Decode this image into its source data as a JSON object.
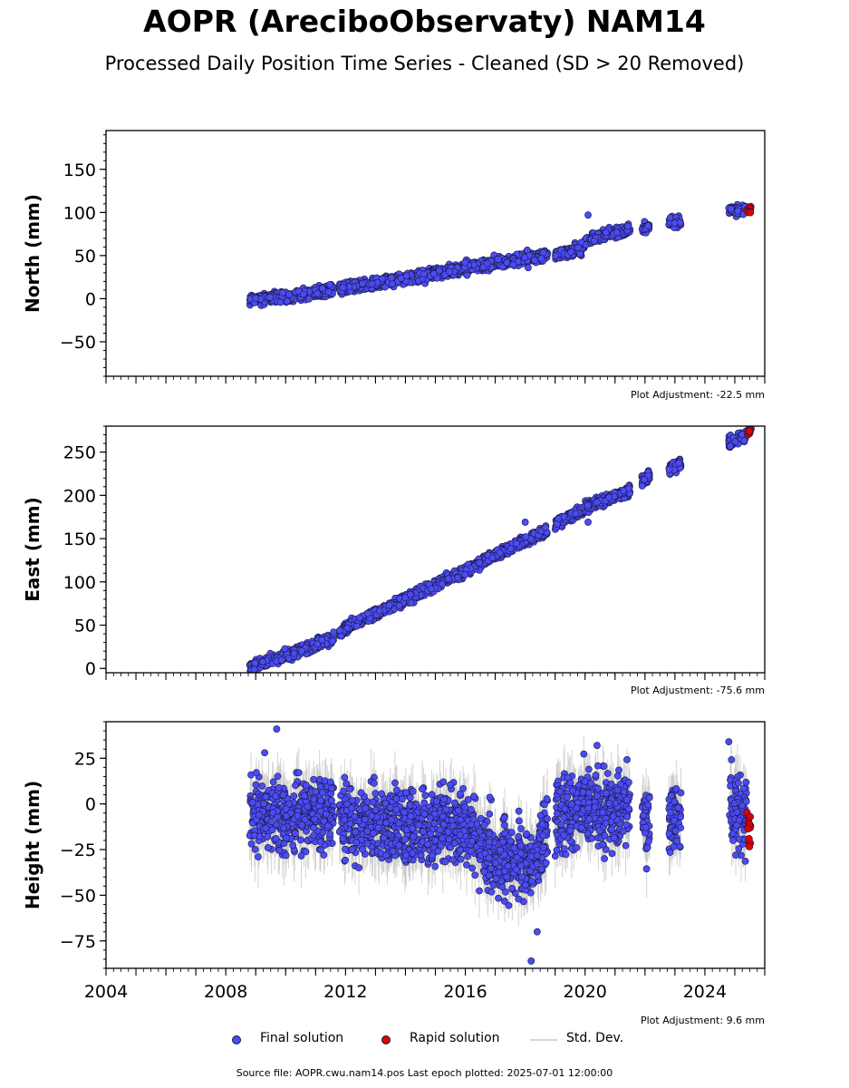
{
  "title": "AOPR (AreciboObservaty) NAM14",
  "subtitle": "Processed Daily Position Time Series - Cleaned (SD > 20 Removed)",
  "colors": {
    "final": "#4b4bf5",
    "rapid": "#e00000",
    "stddev": "#c8c8c8",
    "edge": "#1a1a40"
  },
  "legend": {
    "final": "Final solution",
    "rapid": "Rapid solution",
    "stddev": "Std. Dev."
  },
  "source": "Source file: AOPR.cwu.nam14.pos  Last epoch plotted: 2025-07-01 12:00:00",
  "chart_data": [
    {
      "type": "scatter",
      "ylabel": "North (mm)",
      "xlim": [
        2004,
        2026
      ],
      "ylim": [
        -90,
        195
      ],
      "yticks": [
        -50,
        0,
        50,
        100,
        150
      ],
      "xticks": [
        2004,
        2008,
        2012,
        2016,
        2020,
        2024
      ],
      "show_xtick_labels": false,
      "adjustment": "Plot Adjustment: -22.5 mm",
      "final_trend": [
        {
          "x": 2008.9,
          "y": -1
        },
        {
          "x": 2010.0,
          "y": 2
        },
        {
          "x": 2011.5,
          "y": 10
        },
        {
          "x": 2012.0,
          "y": 13
        },
        {
          "x": 2014.0,
          "y": 23
        },
        {
          "x": 2016.0,
          "y": 36
        },
        {
          "x": 2018.0,
          "y": 47
        },
        {
          "x": 2018.7,
          "y": 50
        },
        {
          "x": 2019.2,
          "y": 53
        },
        {
          "x": 2019.9,
          "y": 58
        },
        {
          "x": 2020.0,
          "y": 66
        },
        {
          "x": 2020.5,
          "y": 73
        },
        {
          "x": 2021.5,
          "y": 80
        },
        {
          "x": 2022.0,
          "y": 83
        },
        {
          "x": 2023.0,
          "y": 89
        },
        {
          "x": 2024.9,
          "y": 102
        },
        {
          "x": 2025.2,
          "y": 103
        }
      ],
      "final_segments": [
        [
          2008.8,
          2011.6
        ],
        [
          2011.8,
          2018.75
        ],
        [
          2019.0,
          2021.5
        ],
        [
          2021.9,
          2022.15
        ],
        [
          2022.8,
          2023.2
        ],
        [
          2024.8,
          2025.4
        ]
      ],
      "final_noise": 3,
      "outliers": [
        {
          "x": 2020.1,
          "y": 97
        },
        {
          "x": 2018.1,
          "y": 36
        }
      ],
      "rapid": [
        {
          "x": 2025.45,
          "y": 103
        },
        {
          "x": 2025.5,
          "y": 105
        },
        {
          "x": 2025.48,
          "y": 101
        }
      ],
      "rapid_noise": 2
    },
    {
      "type": "scatter",
      "ylabel": "East (mm)",
      "xlim": [
        2004,
        2026
      ],
      "ylim": [
        -5,
        280
      ],
      "yticks": [
        0,
        50,
        100,
        150,
        200,
        250
      ],
      "xticks": [
        2004,
        2008,
        2012,
        2016,
        2020,
        2024
      ],
      "show_xtick_labels": false,
      "adjustment": "Plot Adjustment: -75.6 mm",
      "final_trend": [
        {
          "x": 2008.85,
          "y": 2
        },
        {
          "x": 2010.0,
          "y": 15
        },
        {
          "x": 2011.5,
          "y": 33
        },
        {
          "x": 2012.0,
          "y": 46
        },
        {
          "x": 2014.0,
          "y": 80
        },
        {
          "x": 2016.0,
          "y": 113
        },
        {
          "x": 2018.0,
          "y": 148
        },
        {
          "x": 2018.7,
          "y": 158
        },
        {
          "x": 2019.2,
          "y": 170
        },
        {
          "x": 2020.0,
          "y": 185
        },
        {
          "x": 2021.5,
          "y": 206
        },
        {
          "x": 2022.0,
          "y": 220
        },
        {
          "x": 2023.0,
          "y": 233
        },
        {
          "x": 2024.9,
          "y": 262
        },
        {
          "x": 2025.2,
          "y": 268
        }
      ],
      "final_segments": [
        [
          2008.8,
          2011.6
        ],
        [
          2011.8,
          2018.75
        ],
        [
          2019.0,
          2021.5
        ],
        [
          2021.9,
          2022.15
        ],
        [
          2022.8,
          2023.2
        ],
        [
          2024.8,
          2025.4
        ]
      ],
      "final_noise": 3,
      "outliers": [
        {
          "x": 2018.0,
          "y": 169
        },
        {
          "x": 2020.1,
          "y": 169
        }
      ],
      "rapid": [
        {
          "x": 2025.45,
          "y": 272
        },
        {
          "x": 2025.5,
          "y": 276
        },
        {
          "x": 2025.48,
          "y": 274
        }
      ],
      "rapid_noise": 2
    },
    {
      "type": "scatter",
      "ylabel": "Height (mm)",
      "xlim": [
        2004,
        2026
      ],
      "ylim": [
        -90,
        45
      ],
      "yticks": [
        -75,
        -50,
        -25,
        0,
        25
      ],
      "xticks": [
        2004,
        2008,
        2012,
        2016,
        2020,
        2024
      ],
      "show_xtick_labels": true,
      "adjustment": "Plot Adjustment: 9.6 mm",
      "final_trend": [
        {
          "x": 2008.8,
          "y": -5
        },
        {
          "x": 2010.0,
          "y": -5
        },
        {
          "x": 2011.6,
          "y": -3
        },
        {
          "x": 2011.8,
          "y": -10
        },
        {
          "x": 2014.0,
          "y": -12
        },
        {
          "x": 2016.0,
          "y": -12
        },
        {
          "x": 2016.8,
          "y": -25
        },
        {
          "x": 2017.6,
          "y": -32
        },
        {
          "x": 2018.3,
          "y": -30
        },
        {
          "x": 2018.75,
          "y": -12
        },
        {
          "x": 2019.0,
          "y": -8
        },
        {
          "x": 2020.0,
          "y": 0
        },
        {
          "x": 2021.5,
          "y": -5
        },
        {
          "x": 2022.0,
          "y": -8
        },
        {
          "x": 2023.2,
          "y": -10
        },
        {
          "x": 2024.8,
          "y": 0
        },
        {
          "x": 2025.4,
          "y": -8
        }
      ],
      "final_segments": [
        [
          2008.8,
          2011.6
        ],
        [
          2011.8,
          2018.75
        ],
        [
          2019.0,
          2021.5
        ],
        [
          2021.9,
          2022.15
        ],
        [
          2022.8,
          2023.2
        ],
        [
          2024.8,
          2025.4
        ]
      ],
      "final_noise": 10,
      "outliers": [
        {
          "x": 2009.7,
          "y": 41
        },
        {
          "x": 2018.2,
          "y": -86
        },
        {
          "x": 2018.4,
          "y": -70
        },
        {
          "x": 2020.4,
          "y": 32
        },
        {
          "x": 2024.8,
          "y": 34
        },
        {
          "x": 2009.3,
          "y": 28
        }
      ],
      "rapid": [
        {
          "x": 2025.45,
          "y": -5
        },
        {
          "x": 2025.5,
          "y": -10
        },
        {
          "x": 2025.48,
          "y": -20
        },
        {
          "x": 2025.47,
          "y": -14
        }
      ],
      "rapid_noise": 4
    }
  ]
}
